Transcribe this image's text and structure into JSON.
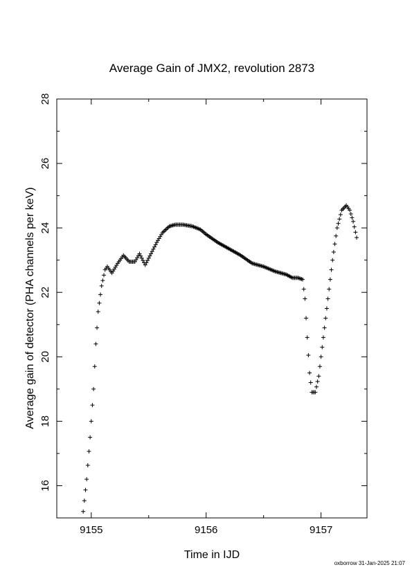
{
  "footer": "oxborrow 31-Jan-2025 21:07",
  "chart_data": {
    "type": "scatter",
    "marker": "plus",
    "title": "Average Gain of JMX2, revolution 2873",
    "xlabel": "Time in IJD",
    "ylabel": "Average gain of detector (PHA channels per keV)",
    "xlim": [
      9154.7,
      9157.4
    ],
    "ylim": [
      15,
      28
    ],
    "xticks": [
      9155,
      9156,
      9157
    ],
    "yticks": [
      16,
      18,
      20,
      22,
      24,
      26,
      28
    ],
    "grid": false,
    "series": [
      {
        "values": [
          [
            9154.93,
            15.2
          ],
          [
            9154.96,
            16.2
          ],
          [
            9154.99,
            17.5
          ],
          [
            9155.02,
            19.0
          ],
          [
            9155.04,
            20.4
          ],
          [
            9155.06,
            21.4
          ],
          [
            9155.09,
            22.2
          ],
          [
            9155.12,
            22.7
          ],
          [
            9155.14,
            22.8
          ],
          [
            9155.18,
            22.6
          ],
          [
            9155.23,
            22.9
          ],
          [
            9155.28,
            23.15
          ],
          [
            9155.33,
            22.95
          ],
          [
            9155.38,
            22.95
          ],
          [
            9155.42,
            23.2
          ],
          [
            9155.47,
            22.85
          ],
          [
            9155.52,
            23.2
          ],
          [
            9155.57,
            23.55
          ],
          [
            9155.62,
            23.85
          ],
          [
            9155.68,
            24.05
          ],
          [
            9155.73,
            24.1
          ],
          [
            9155.8,
            24.1
          ],
          [
            9155.88,
            24.05
          ],
          [
            9155.95,
            23.95
          ],
          [
            9156.0,
            23.8
          ],
          [
            9156.1,
            23.55
          ],
          [
            9156.2,
            23.35
          ],
          [
            9156.3,
            23.15
          ],
          [
            9156.4,
            22.9
          ],
          [
            9156.5,
            22.8
          ],
          [
            9156.6,
            22.65
          ],
          [
            9156.7,
            22.55
          ],
          [
            9156.75,
            22.45
          ],
          [
            9156.8,
            22.45
          ],
          [
            9156.84,
            22.4
          ],
          [
            9156.86,
            21.8
          ],
          [
            9156.88,
            20.6
          ],
          [
            9156.9,
            19.5
          ],
          [
            9156.92,
            18.9
          ],
          [
            9156.95,
            18.9
          ],
          [
            9156.98,
            19.4
          ],
          [
            9157.02,
            20.6
          ],
          [
            9157.06,
            21.8
          ],
          [
            9157.1,
            23.0
          ],
          [
            9157.14,
            24.0
          ],
          [
            9157.18,
            24.55
          ],
          [
            9157.22,
            24.7
          ],
          [
            9157.25,
            24.55
          ],
          [
            9157.28,
            24.2
          ],
          [
            9157.31,
            23.7
          ]
        ]
      }
    ]
  }
}
